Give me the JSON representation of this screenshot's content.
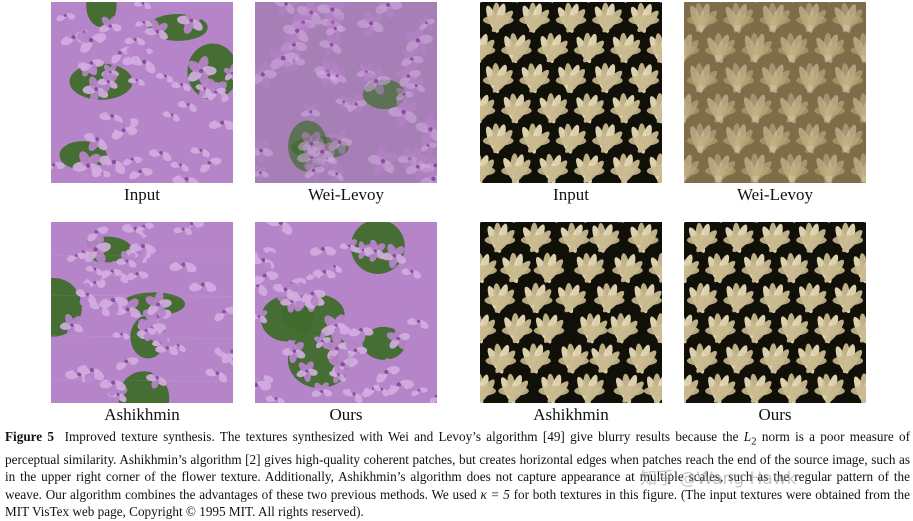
{
  "panels": [
    {
      "id": "flower-input",
      "label": "Input",
      "texture": "flower",
      "variant": "sharp"
    },
    {
      "id": "flower-wei",
      "label": "Wei-Levoy",
      "texture": "flower",
      "variant": "blurry"
    },
    {
      "id": "flower-ashikhmin",
      "label": "Ashikhmin",
      "texture": "flower",
      "variant": "patchy"
    },
    {
      "id": "flower-ours",
      "label": "Ours",
      "texture": "flower",
      "variant": "sharp"
    },
    {
      "id": "weave-input",
      "label": "Input",
      "texture": "weave",
      "variant": "sharp"
    },
    {
      "id": "weave-wei",
      "label": "Wei-Levoy",
      "texture": "weave",
      "variant": "blurry"
    },
    {
      "id": "weave-ashikhmin",
      "label": "Ashikhmin",
      "texture": "weave",
      "variant": "patchy"
    },
    {
      "id": "weave-ours",
      "label": "Ours",
      "texture": "weave",
      "variant": "sharp"
    }
  ],
  "caption": {
    "label": "Figure 5",
    "part1": "Improved texture synthesis. The textures synthesized with Wei and Levoy’s algorithm [49] give blurry results because the ",
    "math_norm": "L",
    "math_sub": "2",
    "part2": " norm is a poor measure of perceptual similarity. Ashikhmin’s algorithm [2] gives high-quality coherent patches, but creates horizontal edges when patches reach the end of the source image, such as in the upper right corner of the flower texture. Additionally, Ashikhmin’s algorithm does not capture appearance at multiple scales, such as the regular pattern of the weave. Our algorithm combines the advantages of these two previous methods. We used ",
    "math_kappa": "κ = 5",
    "part3": " for both textures in this figure. (The input textures were obtained from the MIT VisTex web page, Copyright © 1995 MIT. All rights reserved)."
  },
  "watermark": "知乎 @Wang Hawk",
  "colors": {
    "flower_bg": "#3f6b2c",
    "flower_petal": "#b684c9",
    "flower_petal_light": "#d3aee0",
    "flower_center": "#7a3f8f",
    "weave_bg": "#111008",
    "weave_rope": "#c9b98f",
    "weave_rope_light": "#e8dcb8",
    "weave_blur": "#bca97a"
  }
}
